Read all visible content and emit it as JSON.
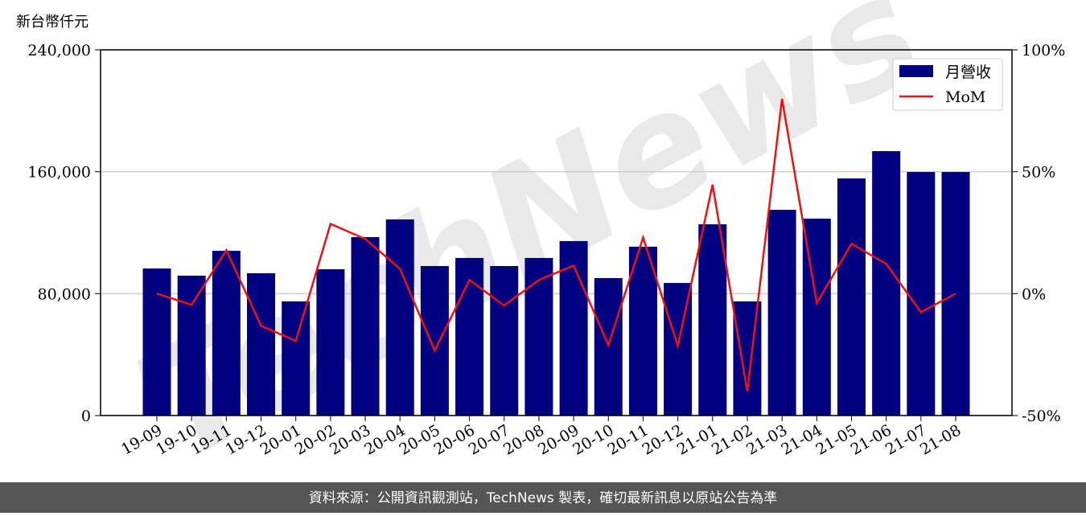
{
  "chart_data": {
    "type": "bar_line",
    "y_axis_label": "新台幣仟元",
    "watermark": "TechNews",
    "footer": "資料來源：公開資訊觀測站，TechNews 製表，確切最新訊息以原站公告為準",
    "categories": [
      "19-09",
      "19-10",
      "19-11",
      "19-12",
      "20-01",
      "20-02",
      "20-03",
      "20-04",
      "20-05",
      "20-06",
      "20-07",
      "20-08",
      "20-09",
      "20-10",
      "20-11",
      "20-12",
      "21-01",
      "21-02",
      "21-03",
      "21-04",
      "21-05",
      "21-06",
      "21-07",
      "21-08"
    ],
    "series": [
      {
        "name": "月營收",
        "type": "bar",
        "color": "#000080",
        "values": [
          96500,
          91800,
          108100,
          93400,
          74900,
          96000,
          117100,
          128700,
          98100,
          103400,
          98100,
          103400,
          114500,
          90200,
          110800,
          87000,
          125500,
          74900,
          135000,
          129200,
          155600,
          173500,
          159800,
          159800
        ]
      },
      {
        "name": "MoM",
        "type": "line",
        "axis": "y2",
        "color": "#ee1111",
        "values": [
          0,
          -4.6,
          17.8,
          -13.2,
          -19.4,
          28.6,
          22.4,
          10.2,
          -23.4,
          5.6,
          -4.9,
          5.6,
          11.5,
          -21.1,
          23,
          -21.4,
          44.7,
          -40.1,
          79.9,
          -3.9,
          20.4,
          12.2,
          -7.6,
          0
        ]
      }
    ],
    "ylim": [
      0,
      240000
    ],
    "yticks": [
      0,
      {
        "value": 80000,
        "label": "80,000"
      },
      {
        "value": 160000,
        "label": "160,000"
      },
      {
        "value": 240000,
        "label": "240,000"
      }
    ],
    "y2lim": [
      -50,
      100
    ],
    "y2ticks": [
      {
        "value": -50,
        "label": "-50%"
      },
      {
        "value": 0,
        "label": "0%"
      },
      {
        "value": 50,
        "label": "50%"
      },
      {
        "value": 100,
        "label": "100%"
      }
    ],
    "grid": true,
    "legend": "upper right"
  }
}
